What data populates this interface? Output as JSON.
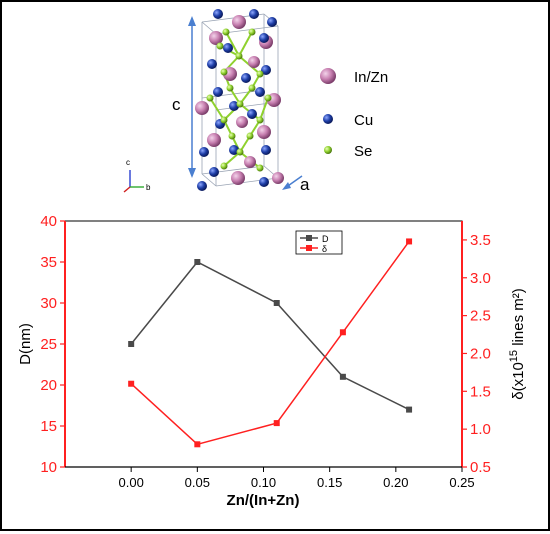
{
  "crystal": {
    "axis_c": "c",
    "axis_a": "a",
    "triad": {
      "c": "c",
      "b": "b"
    },
    "legend": [
      {
        "label": "In/Zn",
        "color": "#c77fb0",
        "icon": "pink-sphere"
      },
      {
        "label": "Cu",
        "color": "#1f3fa8",
        "icon": "blue-sphere"
      },
      {
        "label": "Se",
        "color": "#8fd12e",
        "icon": "green-sphere"
      }
    ]
  },
  "chart_data": {
    "type": "line",
    "xlabel": "Zn/(In+Zn)",
    "ylabel_left": "D(nm)",
    "ylabel_right_pre": "δ(x10",
    "ylabel_right_exp": "15",
    "ylabel_right_post": " lines m²)",
    "xlim": [
      -0.05,
      0.25
    ],
    "ylim_left": [
      10,
      40
    ],
    "ylim_right": [
      0.5,
      3.75
    ],
    "xticks": [
      "0.00",
      "0.05",
      "0.10",
      "0.15",
      "0.20",
      "0.25"
    ],
    "xtick_values": [
      0.0,
      0.05,
      0.1,
      0.15,
      0.2,
      0.25
    ],
    "yticks_left": [
      "10",
      "15",
      "20",
      "25",
      "30",
      "35",
      "40"
    ],
    "ytick_values_left": [
      10,
      15,
      20,
      25,
      30,
      35,
      40
    ],
    "yticks_right": [
      "0.5",
      "1.0",
      "1.5",
      "2.0",
      "2.5",
      "3.0",
      "3.5"
    ],
    "ytick_values_right": [
      0.5,
      1.0,
      1.5,
      2.0,
      2.5,
      3.0,
      3.5
    ],
    "grid": false,
    "legend_position": "top-right",
    "series": [
      {
        "name": "D",
        "axis": "left",
        "color": "#4a4a4a",
        "x": [
          0.0,
          0.05,
          0.11,
          0.16,
          0.21
        ],
        "y": [
          25,
          35,
          30,
          21,
          17
        ]
      },
      {
        "name": "δ",
        "axis": "right",
        "color": "#ff2020",
        "x": [
          0.0,
          0.05,
          0.11,
          0.16,
          0.21
        ],
        "y": [
          1.6,
          0.8,
          1.08,
          2.28,
          3.48
        ]
      }
    ],
    "right_axis_color": "#ff2020"
  }
}
